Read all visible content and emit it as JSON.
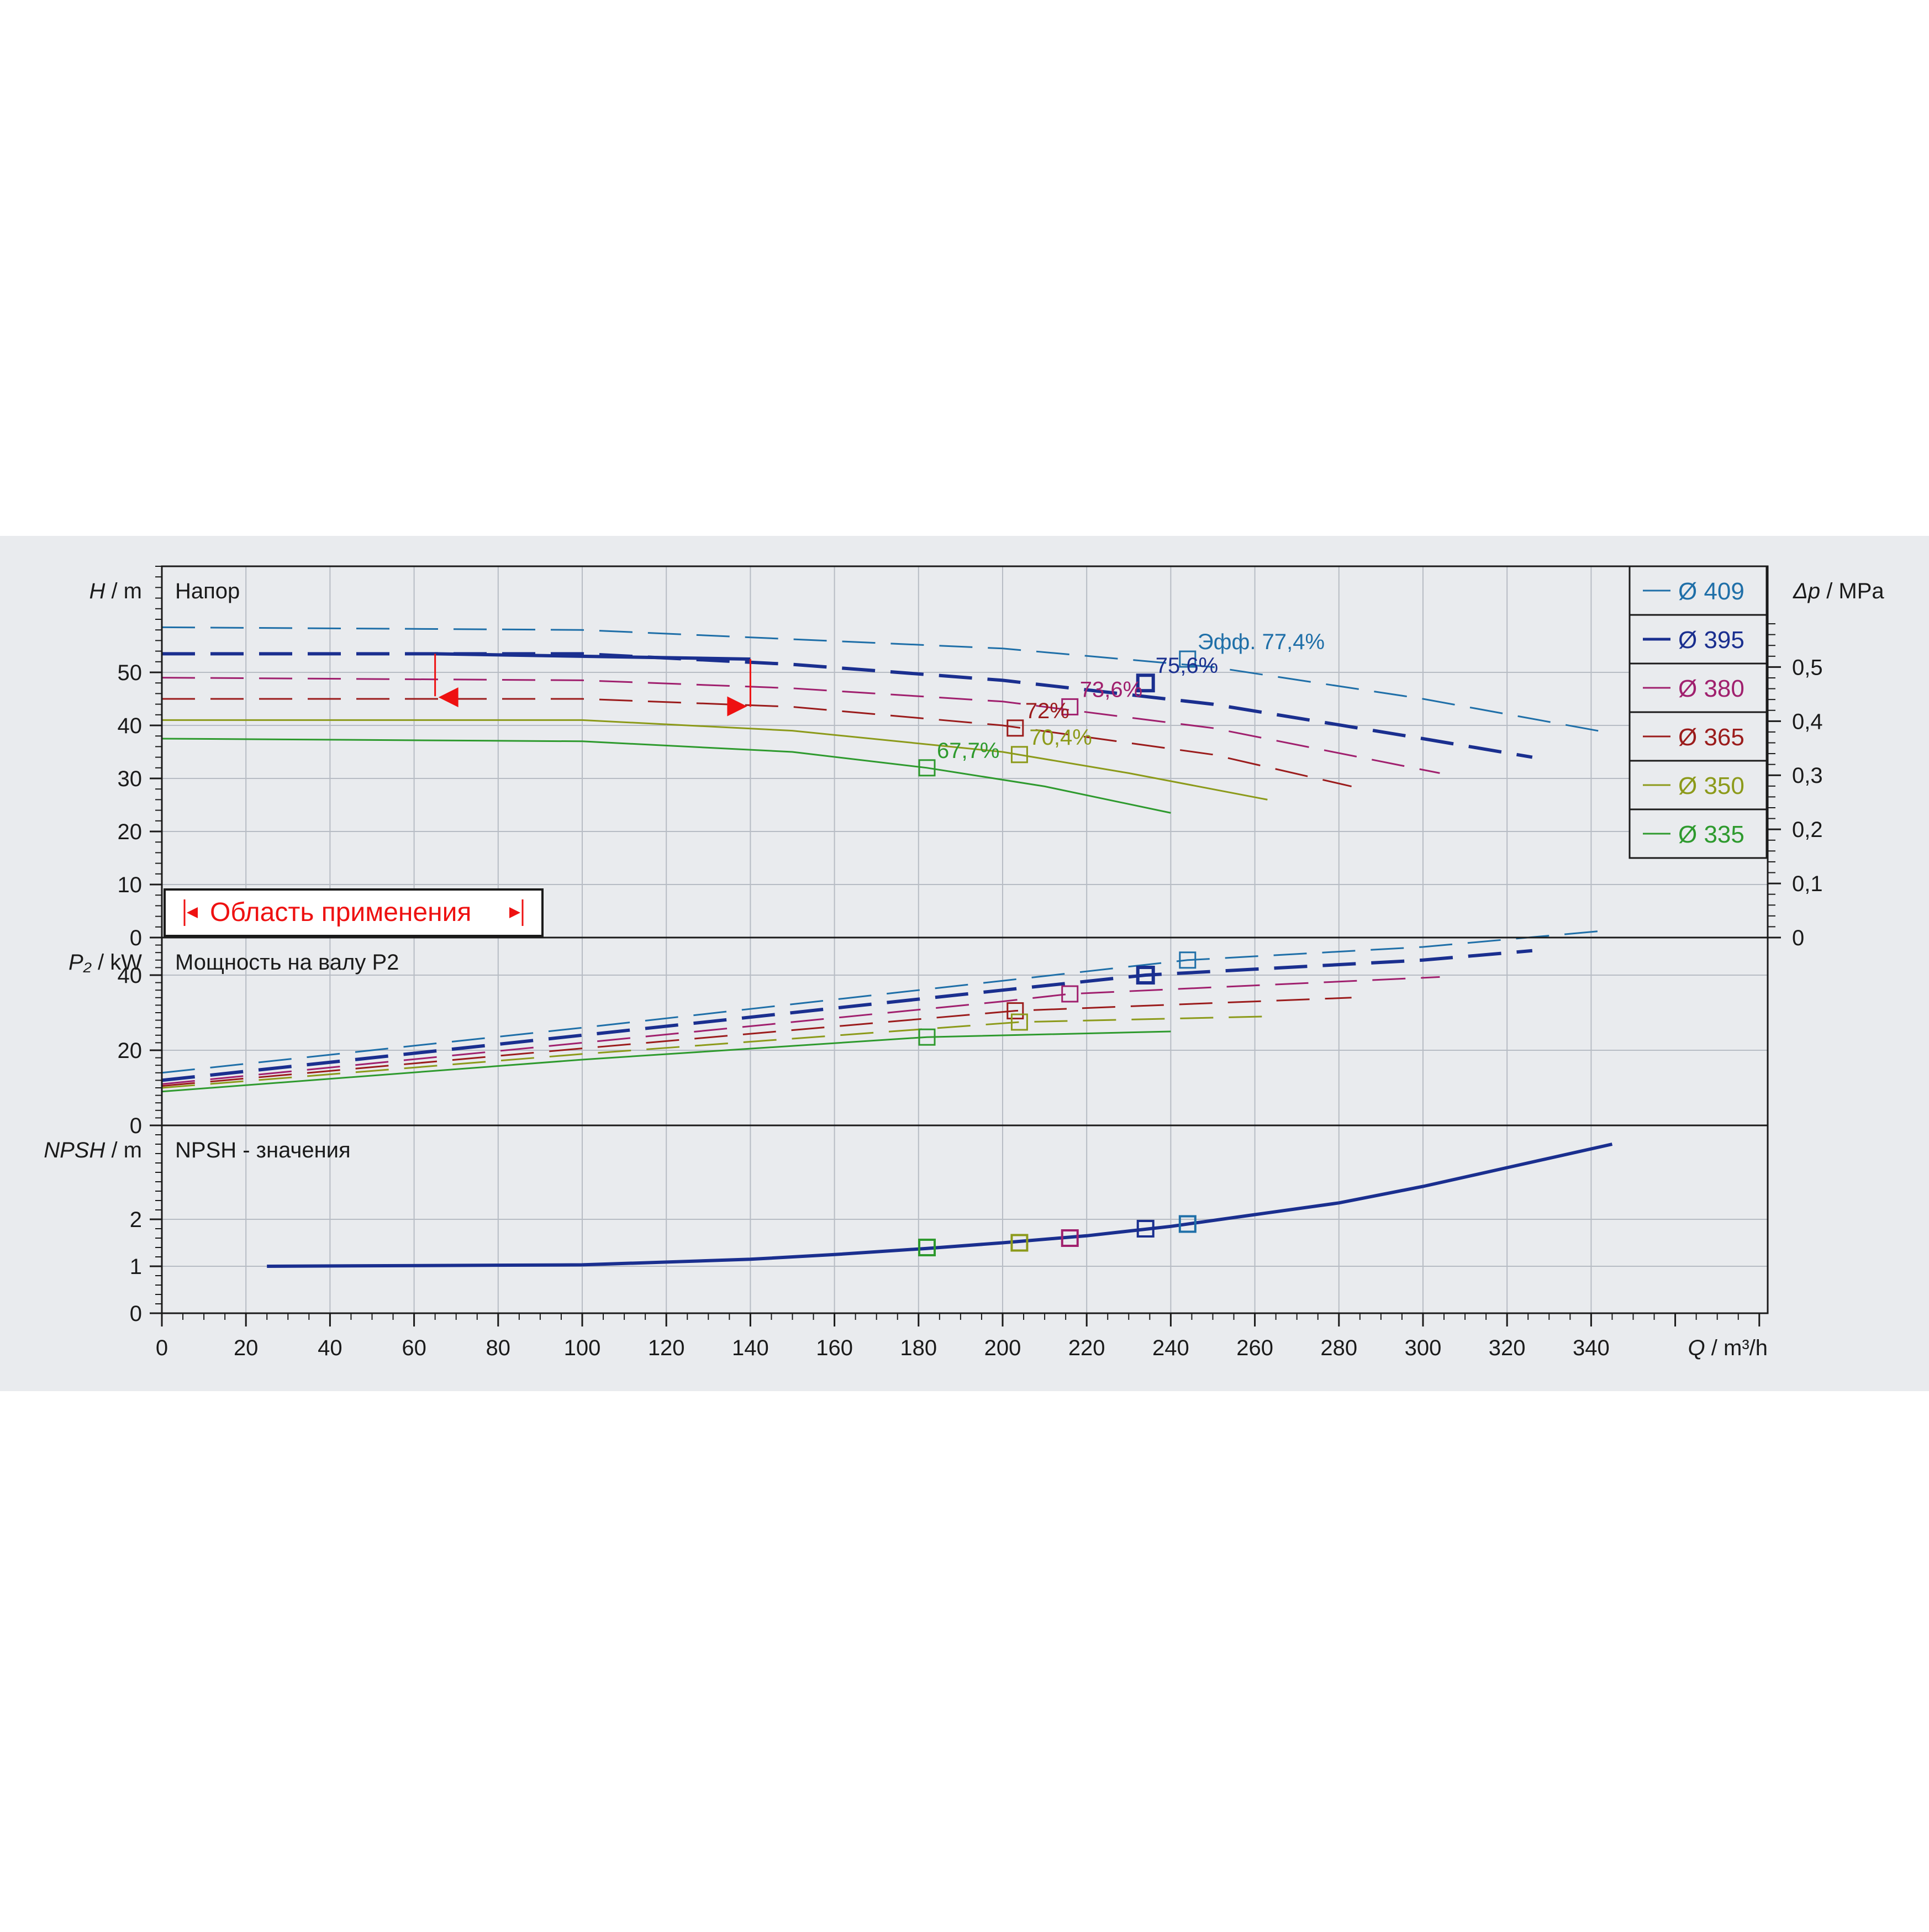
{
  "chart_data": {
    "type": "line",
    "x_axis": {
      "label_symbol": "Q",
      "label_unit": "m³/h",
      "range": [
        0,
        382
      ],
      "ticks": [
        0,
        20,
        40,
        60,
        80,
        100,
        120,
        140,
        160,
        180,
        200,
        220,
        240,
        260,
        280,
        300,
        320,
        340
      ]
    },
    "legend": {
      "placement": "top-right",
      "entries": [
        {
          "label": "Ø 409",
          "color": "#1f6fa8"
        },
        {
          "label": "Ø 395",
          "color": "#1a2f8f"
        },
        {
          "label": "Ø 380",
          "color": "#a0206e"
        },
        {
          "label": "Ø 365",
          "color": "#9b1c1c"
        },
        {
          "label": "Ø 350",
          "color": "#8c9a1a"
        },
        {
          "label": "Ø 335",
          "color": "#2e9a2e"
        }
      ]
    },
    "application_range": {
      "label": "Область применения",
      "q_from": 65,
      "q_to": 140
    },
    "panels": [
      {
        "id": "head",
        "title": "Напор",
        "ylabel_symbol": "H",
        "ylabel_unit": "m",
        "ylim": [
          0,
          70
        ],
        "yticks": [
          0,
          10,
          20,
          30,
          40,
          50
        ],
        "secondary_axis": {
          "label_symbol": "Δp",
          "label_unit": "MPa",
          "ticks": [
            "0",
            "0,1",
            "0,2",
            "0,3",
            "0,4",
            "0,5"
          ],
          "tick_values_m": [
            0,
            10.2,
            20.4,
            30.6,
            40.8,
            51.0
          ]
        },
        "series": [
          {
            "name": "Ø 409",
            "color": "#1f6fa8",
            "solid_range": [],
            "dashed_range": [
              0,
              345
            ],
            "x": [
              0,
              100,
              200,
              250,
              300,
              345
            ],
            "y": [
              58.5,
              58.0,
              54.5,
              51.0,
              45.0,
              38.5
            ],
            "efficiency_label": "Эфф.  77,4%",
            "bep": [
              244,
              52.5
            ]
          },
          {
            "name": "Ø 395",
            "color": "#1a2f8f",
            "solid_range": [
              65,
              140
            ],
            "dashed_range": [
              0,
              326
            ],
            "x": [
              0,
              100,
              150,
              200,
              250,
              300,
              326
            ],
            "y": [
              53.5,
              53.5,
              51.5,
              48.5,
              44.0,
              37.5,
              34.0
            ],
            "efficiency_label": "75,6%",
            "bep": [
              234,
              48.0
            ]
          },
          {
            "name": "Ø 380",
            "color": "#a0206e",
            "solid_range": [
              0,
              215
            ],
            "dashed_range": [
              0,
              304
            ],
            "x": [
              0,
              100,
              150,
              200,
              250,
              304
            ],
            "y": [
              49.0,
              48.5,
              47.0,
              44.5,
              39.5,
              31.0
            ],
            "efficiency_label": "73,6%",
            "bep": [
              216,
              43.5
            ]
          },
          {
            "name": "Ø 365",
            "color": "#9b1c1c",
            "solid_range": [
              0,
              203
            ],
            "dashed_range": [
              0,
              283
            ],
            "x": [
              0,
              100,
              150,
              200,
              250,
              283
            ],
            "y": [
              45.0,
              45.0,
              43.5,
              40.0,
              34.5,
              28.5
            ],
            "efficiency_label": "72%",
            "bep": [
              203,
              39.5
            ]
          },
          {
            "name": "Ø 350",
            "color": "#8c9a1a",
            "solid_range": [
              15,
              263
            ],
            "dashed_range": [
              0,
              15
            ],
            "x": [
              0,
              100,
              150,
              200,
              230,
              263
            ],
            "y": [
              41.0,
              41.0,
              39.0,
              35.0,
              31.0,
              26.0
            ],
            "efficiency_label": "70,4%",
            "bep": [
              204,
              34.5
            ]
          },
          {
            "name": "Ø 335",
            "color": "#2e9a2e",
            "solid_range": [
              15,
              240
            ],
            "dashed_range": [
              0,
              15
            ],
            "x": [
              0,
              100,
              150,
              182,
              210,
              240
            ],
            "y": [
              37.5,
              37.0,
              35.0,
              32.0,
              28.5,
              23.5
            ],
            "efficiency_label": "67,7%",
            "bep": [
              182,
              32.0
            ]
          }
        ]
      },
      {
        "id": "power",
        "title": "Мощность на валу P2",
        "ylabel_symbol": "P₂",
        "ylabel_unit": "kW",
        "ylim": [
          0,
          50
        ],
        "yticks": [
          0,
          20,
          40
        ],
        "series": [
          {
            "name": "Ø 409",
            "x": [
              0,
              100,
              200,
              244,
              300,
              345
            ],
            "y": [
              14.0,
              26.0,
              38.5,
              44.0,
              47.5,
              52.0
            ],
            "bep": [
              244,
              44.0
            ]
          },
          {
            "name": "Ø 395",
            "x": [
              0,
              100,
              200,
              234,
              300,
              326
            ],
            "y": [
              12.0,
              24.0,
              36.0,
              40.0,
              44.0,
              46.5
            ],
            "bep": [
              234,
              40.0
            ]
          },
          {
            "name": "Ø 380",
            "x": [
              0,
              100,
              200,
              216,
              304
            ],
            "y": [
              11.0,
              22.0,
              33.0,
              35.0,
              39.5
            ],
            "bep": [
              216,
              35.0
            ]
          },
          {
            "name": "Ø 365",
            "x": [
              0,
              100,
              203,
              283
            ],
            "y": [
              10.5,
              20.5,
              30.5,
              34.0
            ],
            "bep": [
              203,
              30.5
            ]
          },
          {
            "name": "Ø 350",
            "x": [
              0,
              100,
              204,
              263
            ],
            "y": [
              10.0,
              19.0,
              27.5,
              29.0
            ],
            "bep": [
              204,
              27.5
            ]
          },
          {
            "name": "Ø 335",
            "x": [
              0,
              100,
              182,
              240
            ],
            "y": [
              9.0,
              17.5,
              23.5,
              25.0
            ],
            "bep": [
              182,
              23.5
            ]
          }
        ]
      },
      {
        "id": "npsh",
        "title": "NPSH - значения",
        "ylabel_symbol": "NPSH",
        "ylabel_unit": "m",
        "ylim": [
          0,
          4
        ],
        "yticks": [
          0,
          1,
          2
        ],
        "series": [
          {
            "name": "NPSH",
            "x": [
              25,
              100,
              140,
              160,
              182,
              200,
              220,
              240,
              260,
              280,
              300,
              320,
              345
            ],
            "y": [
              1.0,
              1.03,
              1.15,
              1.25,
              1.38,
              1.5,
              1.65,
              1.85,
              2.1,
              2.35,
              2.7,
              3.1,
              3.6
            ]
          }
        ],
        "bep_markers": [
          {
            "name": "Ø 409",
            "point": [
              244,
              1.9
            ]
          },
          {
            "name": "Ø 395",
            "point": [
              234,
              1.8
            ]
          },
          {
            "name": "Ø 380",
            "point": [
              216,
              1.6
            ]
          },
          {
            "name": "Ø 350",
            "point": [
              204,
              1.5
            ]
          },
          {
            "name": "Ø 335",
            "point": [
              182,
              1.4
            ]
          }
        ]
      }
    ]
  }
}
